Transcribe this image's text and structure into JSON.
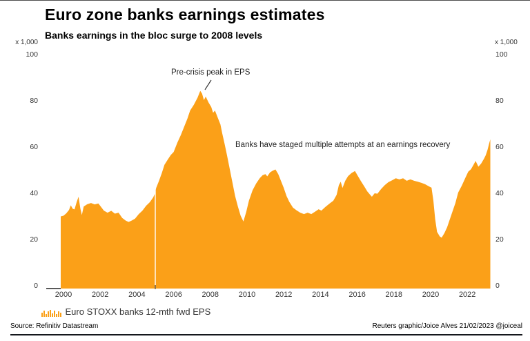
{
  "header": {
    "title": "Euro zone banks earnings estimates",
    "subtitle": "Banks earnings in the bloc surge to 2008 levels"
  },
  "axes": {
    "left_unit": "x 1,000",
    "right_unit": "x 1,000",
    "y_ticks": [
      100,
      80,
      60,
      40,
      20,
      0
    ],
    "x_ticks": [
      2000,
      2002,
      2004,
      2006,
      2008,
      2010,
      2012,
      2014,
      2016,
      2018,
      2020,
      2022
    ]
  },
  "annotations": {
    "peak": "Pre-crisis peak in EPS",
    "recovery": "Banks have staged multiple attempts at an earnings recovery"
  },
  "legend": {
    "icon": "mini-bars-icon",
    "label": "Euro STOXX banks 12-mth fwd EPS"
  },
  "footer": {
    "source": "Source: Refinitiv Datastream",
    "credit": "Reuters graphic/Joice Alves 21/02/2023 @joiceal"
  },
  "colors": {
    "series": "#FBA018",
    "text": "#000000",
    "muted": "#333333",
    "rule": "#14171c"
  },
  "chart_data": {
    "type": "area",
    "title": "Euro zone banks earnings estimates",
    "subtitle": "Banks earnings in the bloc surge to 2008 levels",
    "unit": "x 1,000",
    "x_range": [
      1999.85,
      2023.3
    ],
    "ylim": [
      0,
      100
    ],
    "grid": false,
    "legend_position": "bottom-left",
    "gap_line_year": 2005.0,
    "series": [
      {
        "name": "Euro STOXX banks 12-mth fwd EPS",
        "color": "#FBA018",
        "points": [
          [
            1999.85,
            31.2
          ],
          [
            2000.0,
            31.5
          ],
          [
            2000.15,
            32.5
          ],
          [
            2000.3,
            34
          ],
          [
            2000.4,
            36
          ],
          [
            2000.5,
            34.5
          ],
          [
            2000.6,
            34.2
          ],
          [
            2000.72,
            37.5
          ],
          [
            2000.82,
            39.7
          ],
          [
            2000.92,
            34.5
          ],
          [
            2001.0,
            31.8
          ],
          [
            2001.1,
            35.5
          ],
          [
            2001.3,
            36.5
          ],
          [
            2001.5,
            37
          ],
          [
            2001.7,
            36.4
          ],
          [
            2001.9,
            36.8
          ],
          [
            2002.0,
            35.8
          ],
          [
            2002.2,
            33.7
          ],
          [
            2002.4,
            32.8
          ],
          [
            2002.6,
            33.6
          ],
          [
            2002.8,
            32.4
          ],
          [
            2003.0,
            32.8
          ],
          [
            2003.2,
            30.5
          ],
          [
            2003.4,
            29.3
          ],
          [
            2003.55,
            28.8
          ],
          [
            2003.7,
            29.3
          ],
          [
            2003.9,
            30.2
          ],
          [
            2004.1,
            32.2
          ],
          [
            2004.3,
            33.7
          ],
          [
            2004.5,
            35.8
          ],
          [
            2004.7,
            37.3
          ],
          [
            2004.88,
            39.3
          ],
          [
            2004.98,
            41
          ],
          [
            2005.05,
            43.5
          ],
          [
            2005.2,
            46.5
          ],
          [
            2005.35,
            49.8
          ],
          [
            2005.5,
            53.5
          ],
          [
            2005.7,
            56
          ],
          [
            2005.85,
            57.8
          ],
          [
            2006.0,
            59
          ],
          [
            2006.2,
            63
          ],
          [
            2006.4,
            66.5
          ],
          [
            2006.6,
            70.5
          ],
          [
            2006.75,
            73.5
          ],
          [
            2006.9,
            77
          ],
          [
            2007.1,
            79.5
          ],
          [
            2007.3,
            82.5
          ],
          [
            2007.45,
            85.5
          ],
          [
            2007.55,
            84.3
          ],
          [
            2007.65,
            81.5
          ],
          [
            2007.75,
            83
          ],
          [
            2007.9,
            80.5
          ],
          [
            2008.05,
            78.5
          ],
          [
            2008.15,
            76
          ],
          [
            2008.25,
            77
          ],
          [
            2008.4,
            74
          ],
          [
            2008.55,
            71
          ],
          [
            2008.65,
            67
          ],
          [
            2008.78,
            62.5
          ],
          [
            2008.9,
            58
          ],
          [
            2009.05,
            52
          ],
          [
            2009.2,
            46
          ],
          [
            2009.35,
            40
          ],
          [
            2009.5,
            35.5
          ],
          [
            2009.65,
            31.5
          ],
          [
            2009.8,
            29
          ],
          [
            2009.95,
            33
          ],
          [
            2010.1,
            38
          ],
          [
            2010.3,
            42.5
          ],
          [
            2010.5,
            45.5
          ],
          [
            2010.7,
            47.8
          ],
          [
            2010.85,
            49
          ],
          [
            2011.0,
            49.5
          ],
          [
            2011.1,
            48.5
          ],
          [
            2011.25,
            50.2
          ],
          [
            2011.4,
            51
          ],
          [
            2011.55,
            51.5
          ],
          [
            2011.7,
            49.5
          ],
          [
            2011.85,
            46.5
          ],
          [
            2012.0,
            43.5
          ],
          [
            2012.15,
            40
          ],
          [
            2012.3,
            37.5
          ],
          [
            2012.5,
            35
          ],
          [
            2012.7,
            33.8
          ],
          [
            2012.9,
            32.8
          ],
          [
            2013.1,
            32.2
          ],
          [
            2013.3,
            32.8
          ],
          [
            2013.5,
            32.2
          ],
          [
            2013.7,
            33.2
          ],
          [
            2013.9,
            34.3
          ],
          [
            2014.05,
            33.7
          ],
          [
            2014.25,
            35.2
          ],
          [
            2014.5,
            36.8
          ],
          [
            2014.7,
            38
          ],
          [
            2014.88,
            40.5
          ],
          [
            2015.0,
            44.7
          ],
          [
            2015.1,
            46.2
          ],
          [
            2015.2,
            43.5
          ],
          [
            2015.35,
            46.6
          ],
          [
            2015.5,
            48.6
          ],
          [
            2015.7,
            50
          ],
          [
            2015.88,
            50.8
          ],
          [
            2016.05,
            48.5
          ],
          [
            2016.2,
            46.5
          ],
          [
            2016.4,
            44
          ],
          [
            2016.55,
            42
          ],
          [
            2016.7,
            40.6
          ],
          [
            2016.8,
            39.7
          ],
          [
            2016.95,
            41.2
          ],
          [
            2017.1,
            41
          ],
          [
            2017.3,
            43
          ],
          [
            2017.5,
            44.7
          ],
          [
            2017.7,
            46
          ],
          [
            2017.9,
            46.8
          ],
          [
            2018.1,
            47.7
          ],
          [
            2018.3,
            47.2
          ],
          [
            2018.5,
            47.7
          ],
          [
            2018.7,
            46.6
          ],
          [
            2018.9,
            47.2
          ],
          [
            2019.1,
            46.6
          ],
          [
            2019.3,
            46.2
          ],
          [
            2019.5,
            45.7
          ],
          [
            2019.7,
            45.1
          ],
          [
            2019.9,
            44.2
          ],
          [
            2020.05,
            43.6
          ],
          [
            2020.15,
            38
          ],
          [
            2020.25,
            30
          ],
          [
            2020.35,
            24.5
          ],
          [
            2020.5,
            22.5
          ],
          [
            2020.6,
            22
          ],
          [
            2020.75,
            24
          ],
          [
            2020.9,
            26.5
          ],
          [
            2021.05,
            30
          ],
          [
            2021.2,
            33.5
          ],
          [
            2021.35,
            37
          ],
          [
            2021.5,
            41.5
          ],
          [
            2021.7,
            44.5
          ],
          [
            2021.9,
            48
          ],
          [
            2022.05,
            50.5
          ],
          [
            2022.2,
            51.6
          ],
          [
            2022.35,
            53.7
          ],
          [
            2022.45,
            55.2
          ],
          [
            2022.6,
            52.7
          ],
          [
            2022.75,
            54
          ],
          [
            2022.9,
            56
          ],
          [
            2023.0,
            57.6
          ],
          [
            2023.1,
            60
          ],
          [
            2023.18,
            62.5
          ],
          [
            2023.25,
            64.5
          ]
        ]
      }
    ]
  }
}
